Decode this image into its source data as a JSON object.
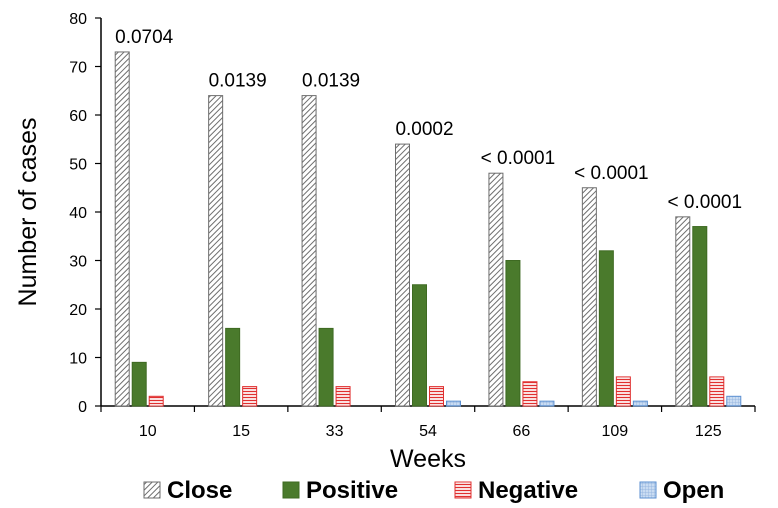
{
  "chart_data": {
    "type": "bar",
    "title": "",
    "xlabel": "Weeks",
    "ylabel": "Number of cases",
    "ylim": [
      0,
      80
    ],
    "yticks": [
      "0",
      "10",
      "20",
      "30",
      "40",
      "50",
      "60",
      "70",
      "80"
    ],
    "categories": [
      "10",
      "15",
      "33",
      "54",
      "66",
      "109",
      "125"
    ],
    "series": [
      {
        "name": "Close",
        "values": [
          73,
          64,
          64,
          54,
          48,
          45,
          39
        ],
        "color": "#808080",
        "pattern": "diagonal-hatch"
      },
      {
        "name": "Positive",
        "values": [
          9,
          16,
          16,
          25,
          30,
          32,
          37
        ],
        "color": "#4a7a2c",
        "pattern": "solid"
      },
      {
        "name": "Negative",
        "values": [
          2,
          4,
          4,
          4,
          5,
          6,
          6
        ],
        "color": "#e03030",
        "pattern": "horizontal-lines"
      },
      {
        "name": "Open",
        "values": [
          0,
          0,
          0,
          1,
          1,
          1,
          2
        ],
        "color": "#5b8fd0",
        "pattern": "light-grid"
      }
    ],
    "annotations": [
      "0.0704",
      "0.0139",
      "0.0139",
      "0.0002",
      "< 0.0001",
      "< 0.0001",
      "< 0.0001"
    ],
    "legend_position": "bottom",
    "grid": false
  }
}
